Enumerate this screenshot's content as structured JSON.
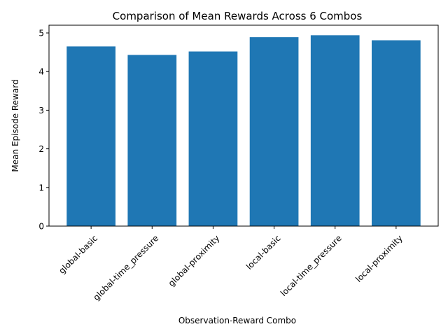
{
  "chart_data": {
    "type": "bar",
    "title": "Comparison of Mean Rewards Across 6 Combos",
    "xlabel": "Observation-Reward Combo",
    "ylabel": "Mean Episode Reward",
    "categories": [
      "global-basic",
      "global-time_pressure",
      "global-proximity",
      "local-basic",
      "local-time_pressure",
      "local-proximity"
    ],
    "values": [
      4.65,
      4.43,
      4.52,
      4.89,
      4.94,
      4.81
    ],
    "ylim": [
      0,
      5.2
    ],
    "yticks": [
      "0",
      "1",
      "2",
      "3",
      "4",
      "5"
    ],
    "bar_color": "#1f77b4",
    "grid": false,
    "legend": "none"
  }
}
